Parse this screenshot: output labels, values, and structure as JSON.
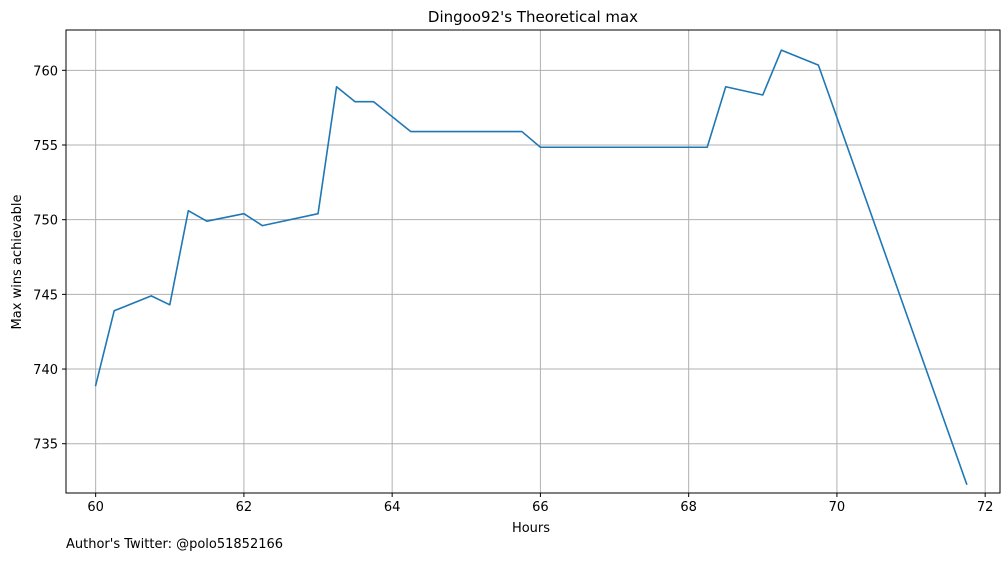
{
  "chart_data": {
    "type": "line",
    "title": "Dingoo92's Theoretical max",
    "xlabel": "Hours",
    "ylabel": "Max wins achievable",
    "xlim": [
      59.6,
      72.2
    ],
    "ylim": [
      731.7,
      762.7
    ],
    "xticks": [
      60,
      62,
      64,
      66,
      68,
      70,
      72
    ],
    "yticks": [
      735,
      740,
      745,
      750,
      755,
      760
    ],
    "grid": true,
    "line_color": "#1f77b4",
    "series": [
      {
        "x": [
          60.0,
          60.25,
          60.75,
          61.0,
          61.25,
          61.5,
          62.0,
          62.25,
          63.0,
          63.25,
          63.5,
          63.75,
          64.25,
          65.75,
          66.0,
          68.25,
          68.5,
          69.0,
          69.25,
          69.75,
          71.75
        ],
        "values": [
          738.9,
          743.9,
          744.9,
          744.3,
          750.6,
          749.9,
          750.4,
          749.6,
          750.4,
          758.9,
          757.9,
          757.9,
          755.9,
          755.9,
          754.85,
          754.85,
          758.9,
          758.35,
          761.35,
          760.35,
          732.3
        ]
      }
    ]
  },
  "footer": {
    "text": "Author's Twitter: @polo51852166"
  }
}
